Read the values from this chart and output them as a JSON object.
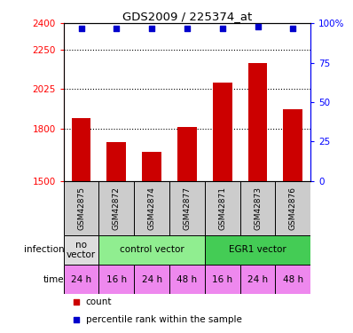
{
  "title": "GDS2009 / 225374_at",
  "samples": [
    "GSM42875",
    "GSM42872",
    "GSM42874",
    "GSM42877",
    "GSM42871",
    "GSM42873",
    "GSM42876"
  ],
  "counts": [
    1860,
    1720,
    1665,
    1810,
    2060,
    2175,
    1910
  ],
  "percentile_ranks": [
    97,
    97,
    97,
    97,
    97,
    98,
    97
  ],
  "infection_groups": [
    {
      "label": "no\nvector",
      "start": 0,
      "end": 1,
      "color": "#dddddd"
    },
    {
      "label": "control vector",
      "start": 1,
      "end": 4,
      "color": "#90ee90"
    },
    {
      "label": "EGR1 vector",
      "start": 4,
      "end": 7,
      "color": "#44cc55"
    }
  ],
  "time_labels": [
    "24 h",
    "16 h",
    "24 h",
    "48 h",
    "16 h",
    "24 h",
    "48 h"
  ],
  "time_color": "#ee88ee",
  "ylim_left": [
    1500,
    2400
  ],
  "yticks_left": [
    1500,
    1800,
    2025,
    2250,
    2400
  ],
  "ylim_right": [
    0,
    100
  ],
  "yticks_right": [
    0,
    25,
    50,
    75,
    100
  ],
  "bar_color": "#cc0000",
  "dot_color": "#0000cc",
  "bar_width": 0.55,
  "legend_count_color": "#cc0000",
  "legend_dot_color": "#0000cc",
  "sample_box_color": "#cccccc",
  "fig_width": 3.98,
  "fig_height": 3.75,
  "dpi": 100
}
